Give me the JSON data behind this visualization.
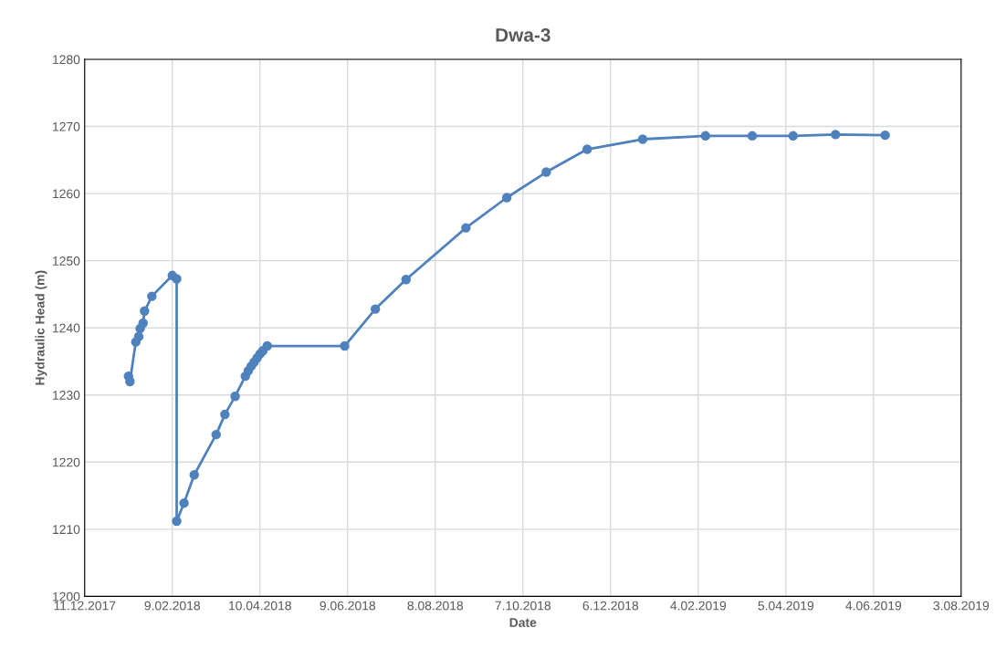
{
  "chart_data": {
    "type": "line",
    "title": "Dwa-3",
    "xlabel": "Date",
    "ylabel": "Hydraulic Head (m)",
    "x": [
      "2018-01-10",
      "2018-01-11",
      "2018-01-15",
      "2018-01-17",
      "2018-01-18",
      "2018-01-20",
      "2018-01-21",
      "2018-01-26",
      "2018-02-09",
      "2018-02-12",
      "2018-02-12",
      "2018-02-17",
      "2018-02-24",
      "2018-03-11",
      "2018-03-17",
      "2018-03-24",
      "2018-03-31",
      "2018-04-02",
      "2018-04-04",
      "2018-04-06",
      "2018-04-08",
      "2018-04-10",
      "2018-04-12",
      "2018-04-15",
      "2018-06-07",
      "2018-06-28",
      "2018-07-19",
      "2018-08-29",
      "2018-09-26",
      "2018-10-23",
      "2018-11-20",
      "2018-12-28",
      "2019-02-09",
      "2019-03-13",
      "2019-04-10",
      "2019-05-09",
      "2019-06-12"
    ],
    "series": [
      {
        "color": "#4f81bd",
        "values": [
          1232.8,
          1232.0,
          1237.9,
          1238.7,
          1239.9,
          1240.7,
          1242.5,
          1244.7,
          1247.8,
          1247.3,
          1211.2,
          1213.9,
          1218.1,
          1224.1,
          1227.1,
          1229.8,
          1232.8,
          1233.6,
          1234.3,
          1234.9,
          1235.5,
          1236.1,
          1236.6,
          1237.3,
          1237.3,
          1242.8,
          1247.2,
          1254.9,
          1259.4,
          1263.2,
          1266.6,
          1268.1,
          1268.6,
          1268.6,
          1268.6,
          1268.8,
          1268.7
        ]
      }
    ],
    "xlim": [
      "2017-12-11",
      "2019-08-03"
    ],
    "xticks": [
      {
        "value": "2017-12-11",
        "label": "11.12.2017"
      },
      {
        "value": "2018-02-09",
        "label": "9.02.2018"
      },
      {
        "value": "2018-04-10",
        "label": "10.04.2018"
      },
      {
        "value": "2018-06-09",
        "label": "9.06.2018"
      },
      {
        "value": "2018-08-08",
        "label": "8.08.2018"
      },
      {
        "value": "2018-10-07",
        "label": "7.10.2018"
      },
      {
        "value": "2018-12-06",
        "label": "6.12.2018"
      },
      {
        "value": "2019-02-04",
        "label": "4.02.2019"
      },
      {
        "value": "2019-04-05",
        "label": "5.04.2019"
      },
      {
        "value": "2019-06-04",
        "label": "4.06.2019"
      },
      {
        "value": "2019-08-03",
        "label": "3.08.2019"
      }
    ],
    "ylim": [
      1200,
      1280
    ],
    "yticks": [
      1200,
      1210,
      1220,
      1230,
      1240,
      1250,
      1260,
      1270,
      1280
    ],
    "grid": true,
    "marker": "circle",
    "line_style": "solid"
  }
}
